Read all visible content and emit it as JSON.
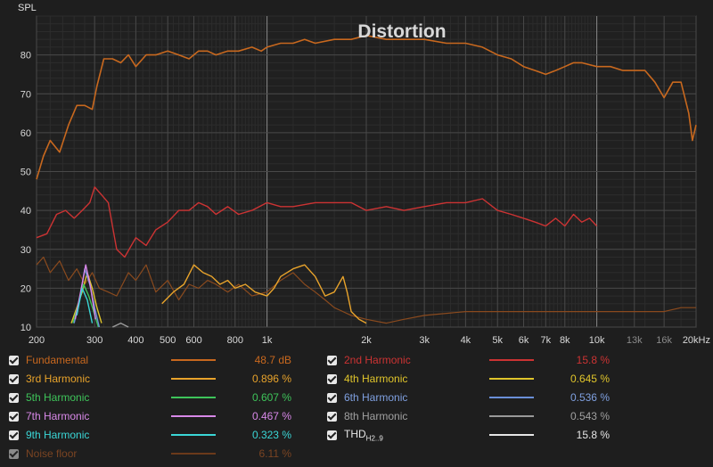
{
  "chart_data": {
    "type": "line",
    "title": "Distortion",
    "ylabel": "SPL",
    "xlabel_unit": "kHz",
    "xscale": "log",
    "xlim": [
      200,
      20000
    ],
    "ylim": [
      10,
      90
    ],
    "yticks": [
      10,
      20,
      30,
      40,
      50,
      60,
      70,
      80
    ],
    "xticks": [
      {
        "v": 200,
        "l": "200",
        "major": true
      },
      {
        "v": 300,
        "l": "300",
        "major": true
      },
      {
        "v": 400,
        "l": "400",
        "major": true
      },
      {
        "v": 500,
        "l": "500",
        "major": true
      },
      {
        "v": 600,
        "l": "600",
        "major": true
      },
      {
        "v": 800,
        "l": "800",
        "major": true
      },
      {
        "v": 1000,
        "l": "1k",
        "major": true
      },
      {
        "v": 2000,
        "l": "2k",
        "major": true
      },
      {
        "v": 3000,
        "l": "3k",
        "major": true
      },
      {
        "v": 4000,
        "l": "4k",
        "major": true
      },
      {
        "v": 5000,
        "l": "5k",
        "major": true
      },
      {
        "v": 6000,
        "l": "6k",
        "major": true
      },
      {
        "v": 7000,
        "l": "7k",
        "major": true
      },
      {
        "v": 8000,
        "l": "8k",
        "major": true
      },
      {
        "v": 10000,
        "l": "10k",
        "major": true
      },
      {
        "v": 13000,
        "l": "13k",
        "major": false
      },
      {
        "v": 16000,
        "l": "16k",
        "major": false
      },
      {
        "v": 20000,
        "l": "20kHz",
        "major": true
      }
    ],
    "grid": true,
    "series": [
      {
        "name": "Fundamental",
        "color": "#c8681e",
        "width": 1.6,
        "x": [
          200,
          210,
          220,
          235,
          250,
          265,
          280,
          295,
          305,
          320,
          340,
          360,
          380,
          400,
          430,
          460,
          500,
          540,
          580,
          620,
          660,
          700,
          760,
          820,
          900,
          960,
          1000,
          1100,
          1200,
          1300,
          1400,
          1600,
          1800,
          2000,
          2300,
          2600,
          3000,
          3500,
          4000,
          4500,
          5000,
          5500,
          6000,
          6500,
          7000,
          7500,
          8000,
          8500,
          9000,
          10000,
          11000,
          12000,
          13000,
          14000,
          15000,
          16000,
          17000,
          18000,
          19000,
          19500,
          20000
        ],
        "y": [
          48,
          54,
          58,
          55,
          62,
          67,
          67,
          66,
          72,
          79,
          79,
          78,
          80,
          77,
          80,
          80,
          81,
          80,
          79,
          81,
          81,
          80,
          81,
          81,
          82,
          81,
          82,
          83,
          83,
          84,
          83,
          84,
          84,
          85,
          84,
          84,
          84,
          83,
          83,
          82,
          80,
          79,
          77,
          76,
          75,
          76,
          77,
          78,
          78,
          77,
          77,
          76,
          76,
          76,
          73,
          69,
          73,
          73,
          65,
          58,
          62
        ]
      },
      {
        "name": "2nd Harmonic",
        "color": "#cc3333",
        "width": 1.4,
        "x": [
          200,
          215,
          230,
          245,
          260,
          275,
          290,
          300,
          315,
          330,
          350,
          370,
          400,
          430,
          460,
          500,
          540,
          580,
          620,
          660,
          700,
          760,
          820,
          900,
          1000,
          1100,
          1200,
          1400,
          1600,
          1800,
          2000,
          2300,
          2600,
          3000,
          3500,
          4000,
          4500,
          5000,
          5500,
          6000,
          6500,
          7000,
          7500,
          8000,
          8500,
          9000,
          9500,
          10000
        ],
        "y": [
          33,
          34,
          39,
          40,
          38,
          40,
          42,
          46,
          44,
          42,
          30,
          28,
          33,
          31,
          35,
          37,
          40,
          40,
          42,
          41,
          39,
          41,
          39,
          40,
          42,
          41,
          41,
          42,
          42,
          42,
          40,
          41,
          40,
          41,
          42,
          42,
          43,
          40,
          39,
          38,
          37,
          36,
          38,
          36,
          39,
          37,
          38,
          36
        ]
      },
      {
        "name": "3rd Harmonic",
        "color": "#e8a32b",
        "width": 1.4,
        "x": [
          480,
          520,
          560,
          600,
          640,
          680,
          720,
          760,
          800,
          860,
          920,
          1000,
          1050,
          1100,
          1200,
          1300,
          1400,
          1500,
          1600,
          1700,
          1750,
          1800,
          1900,
          2000
        ],
        "y": [
          16,
          19,
          21,
          26,
          24,
          23,
          21,
          22,
          20,
          21,
          19,
          18,
          20,
          23,
          25,
          26,
          23,
          18,
          19,
          23,
          19,
          14,
          12,
          11
        ]
      },
      {
        "name": "4th Harmonic",
        "color": "#e0c52b",
        "width": 1.4,
        "x": [
          255,
          265,
          275,
          285,
          295,
          305,
          315
        ],
        "y": [
          11,
          15,
          19,
          24,
          20,
          15,
          11
        ]
      },
      {
        "name": "5th Harmonic",
        "color": "#3ec45a",
        "width": 1.4,
        "x": [
          258,
          268,
          278,
          288,
          298,
          308
        ],
        "y": [
          11,
          16,
          21,
          18,
          14,
          10
        ]
      },
      {
        "name": "6th Harmonic",
        "color": "#6a8fd8",
        "width": 1.4,
        "x": [
          260,
          270,
          280,
          290,
          300,
          310
        ],
        "y": [
          11,
          17,
          25,
          21,
          15,
          10
        ]
      },
      {
        "name": "7th Harmonic",
        "color": "#d888e8",
        "width": 1.4,
        "x": [
          262,
          272,
          282,
          292,
          302
        ],
        "y": [
          12,
          19,
          26,
          20,
          12
        ]
      },
      {
        "name": "8th Harmonic",
        "color": "#999999",
        "width": 1.4,
        "x": [
          340,
          360,
          380
        ],
        "y": [
          10,
          11,
          10
        ]
      },
      {
        "name": "9th Harmonic",
        "color": "#3ad6d6",
        "width": 1.4,
        "x": [
          265,
          275,
          285,
          295
        ],
        "y": [
          13,
          20,
          17,
          11
        ]
      },
      {
        "name": "THD",
        "color": "#8a4a1e",
        "width": 1.2,
        "x": [
          200,
          210,
          220,
          235,
          250,
          265,
          280,
          295,
          310,
          330,
          350,
          380,
          400,
          430,
          460,
          500,
          540,
          580,
          620,
          660,
          700,
          760,
          820,
          900,
          1000,
          1100,
          1200,
          1300,
          1400,
          1500,
          1600,
          1800,
          2000,
          2300,
          2600,
          3000,
          4000,
          5000,
          6000,
          7000,
          8000,
          10000,
          12000,
          14000,
          16000,
          18000,
          20000
        ],
        "y": [
          26,
          28,
          24,
          27,
          22,
          25,
          21,
          24,
          20,
          19,
          18,
          24,
          22,
          26,
          19,
          22,
          17,
          21,
          20,
          22,
          21,
          19,
          21,
          18,
          19,
          22,
          24,
          21,
          19,
          17,
          15,
          13,
          12,
          11,
          12,
          13,
          14,
          14,
          14,
          14,
          14,
          14,
          14,
          14,
          14,
          15,
          15
        ]
      }
    ]
  },
  "legend": [
    {
      "label": "Fundamental",
      "value": "48.7 dB",
      "color": "#c8681e",
      "enabled": true
    },
    {
      "label": "3rd Harmonic",
      "value": "0.896 %",
      "color": "#e8a32b",
      "enabled": true
    },
    {
      "label": "5th Harmonic",
      "value": "0.607 %",
      "color": "#3ec45a",
      "enabled": true
    },
    {
      "label": "7th Harmonic",
      "value": "0.467 %",
      "color": "#d888e8",
      "enabled": true
    },
    {
      "label": "9th Harmonic",
      "value": "0.323 %",
      "color": "#3ad6d6",
      "enabled": true
    },
    {
      "label": "Noise floor",
      "value": "6.11 %",
      "color": "#6b3a1a",
      "enabled": false
    },
    {
      "label": "2nd Harmonic",
      "value": "15.8 %",
      "color": "#cc3333",
      "enabled": true
    },
    {
      "label": "4th Harmonic",
      "value": "0.645 %",
      "color": "#e0c52b",
      "enabled": true
    },
    {
      "label": "6th Harmonic",
      "value": "0.536 %",
      "color": "#6a8fd8",
      "enabled": true
    },
    {
      "label": "8th Harmonic",
      "value": "0.543 %",
      "color": "#999999",
      "enabled": true
    },
    {
      "label": "THD",
      "label_sub": "H2..9",
      "value": "15.8 %",
      "color": "#e6e6e6",
      "enabled": true
    }
  ]
}
